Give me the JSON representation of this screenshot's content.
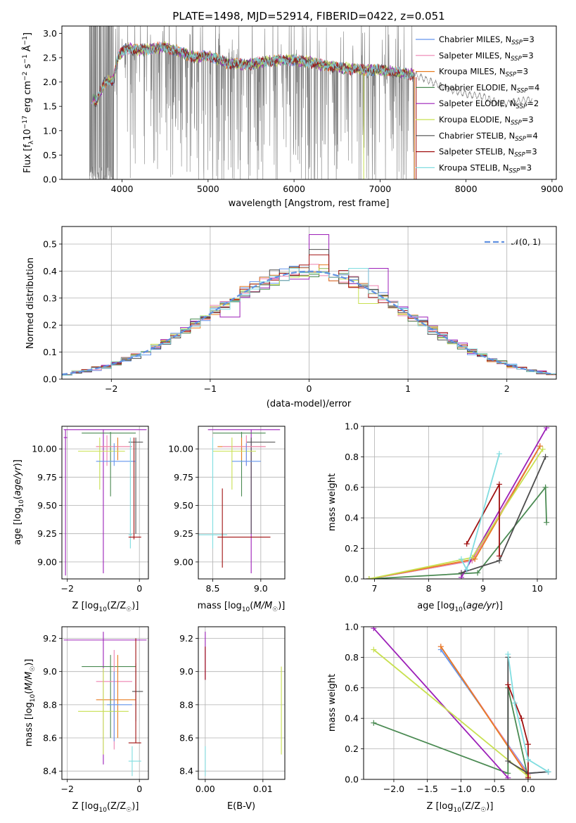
{
  "title": "PLATE=1498, MJD=52914, FIBERID=0422, z=0.051",
  "colors": {
    "data": "#808080",
    "Chabrier MILES": "#6495ed",
    "Salpeter MILES": "#ee82b0",
    "Kroupa MILES": "#e87d22",
    "Chabrier ELODIE": "#4a8a52",
    "Salpeter ELODIE": "#9c1fb8",
    "Kroupa ELODIE": "#c8e050",
    "Chabrier STELIB": "#4d4d4d",
    "Salpeter STELIB": "#a01010",
    "Kroupa STELIB": "#80dde0",
    "normal": "#6090e0"
  },
  "labels": {
    "spec_x": "wavelength [Angstrom, rest frame]",
    "spec_y": "Flux [f_λ 10^-17 erg cm^-2 s^-1 Å^-1]",
    "hist_x": "(data-model)/error",
    "hist_y": "Normed distribution",
    "normal": "𝒩(0, 1)",
    "age": "age  [log10(age/yr)]",
    "Z": "Z [log10(Z/Z☉)]",
    "mass": "mass [log10(M/M☉)]",
    "mw": "mass weight",
    "ebv": "E(B-V)"
  },
  "legend": [
    {
      "imf": "Chabrier",
      "lib": "MILES",
      "n": "3"
    },
    {
      "imf": "Salpeter",
      "lib": "MILES",
      "n": "3"
    },
    {
      "imf": "Kroupa",
      "lib": "MILES",
      "n": "3"
    },
    {
      "imf": "Chabrier",
      "lib": "ELODIE",
      "n": "4"
    },
    {
      "imf": "Salpeter",
      "lib": "ELODIE",
      "n": "2"
    },
    {
      "imf": "Kroupa",
      "lib": "ELODIE",
      "n": "3"
    },
    {
      "imf": "Chabrier",
      "lib": "STELIB",
      "n": "4"
    },
    {
      "imf": "Salpeter",
      "lib": "STELIB",
      "n": "3"
    },
    {
      "imf": "Kroupa",
      "lib": "STELIB",
      "n": "3"
    }
  ],
  "chart_data": [
    {
      "type": "line",
      "name": "spectrum",
      "xlim": [
        3300,
        9050
      ],
      "ylim": [
        0,
        3.15
      ],
      "xticks": [
        4000,
        5000,
        6000,
        7000,
        8000,
        9000
      ],
      "yticks": [
        0.0,
        0.5,
        1.0,
        1.5,
        2.0,
        2.5,
        3.0
      ],
      "grid": false,
      "legend_position": "right",
      "continuum_knots": [
        [
          3620,
          1.7
        ],
        [
          3700,
          1.6
        ],
        [
          3800,
          2.0
        ],
        [
          3900,
          2.05
        ],
        [
          3950,
          2.5
        ],
        [
          4050,
          2.7
        ],
        [
          4200,
          2.65
        ],
        [
          4400,
          2.7
        ],
        [
          4500,
          2.72
        ],
        [
          4700,
          2.6
        ],
        [
          4850,
          2.5
        ],
        [
          5000,
          2.55
        ],
        [
          5200,
          2.4
        ],
        [
          5400,
          2.35
        ],
        [
          5600,
          2.4
        ],
        [
          5800,
          2.45
        ],
        [
          6000,
          2.45
        ],
        [
          6200,
          2.4
        ],
        [
          6500,
          2.3
        ],
        [
          6800,
          2.25
        ],
        [
          7000,
          2.25
        ],
        [
          7200,
          2.2
        ],
        [
          7400,
          2.15
        ],
        [
          7600,
          2.0
        ],
        [
          7800,
          1.85
        ],
        [
          8000,
          1.75
        ],
        [
          8200,
          1.7
        ],
        [
          8400,
          1.55
        ],
        [
          8600,
          1.6
        ],
        [
          8770,
          1.65
        ]
      ],
      "noise_regions": [
        [
          3620,
          3900,
          "full"
        ],
        [
          3900,
          7400,
          "spiky"
        ],
        [
          7400,
          8770,
          "smooth"
        ]
      ]
    },
    {
      "type": "bar",
      "name": "residual histograms",
      "xlim": [
        -2.5,
        2.5
      ],
      "ylim": [
        0,
        0.565
      ],
      "xticks": [
        -2,
        -1,
        0,
        1,
        2
      ],
      "yticks": [
        0.0,
        0.1,
        0.2,
        0.3,
        0.4,
        0.5
      ],
      "grid": true,
      "bin_width": 0.1,
      "legend_position": "top-right",
      "spiky_bins": {
        "Salpeter ELODIE": [
          [
            0.1,
            0.535
          ],
          [
            1.1,
            0.23
          ],
          [
            -0.1,
            0.37
          ],
          [
            0.7,
            0.41
          ],
          [
            -0.8,
            0.23
          ]
        ],
        "Chabrier STELIB": [
          [
            0.1,
            0.48
          ]
        ],
        "Salpeter STELIB": [
          [
            0.1,
            0.46
          ]
        ],
        "Kroupa STELIB": [
          [
            0.5,
            0.41
          ]
        ],
        "Kroupa ELODIE": [
          [
            0.6,
            0.28
          ],
          [
            -0.4,
            0.35
          ]
        ]
      }
    },
    {
      "type": "scatter",
      "name": "age vs Z",
      "xlim": [
        -2.15,
        0.25
      ],
      "ylim": [
        8.85,
        10.2
      ],
      "xticks": [
        -2,
        0
      ],
      "yticks": [
        9.0,
        9.25,
        9.5,
        9.75,
        10.0
      ],
      "grid": true,
      "points": [
        {
          "s": "Salpeter ELODIE",
          "x": -1.0,
          "xlo": -2.1,
          "xhi": 0.2,
          "y": 10.17,
          "ylo": 8.9,
          "yhi": 10.17
        },
        {
          "s": "Salpeter ELODIE",
          "x": -2.05,
          "xlo": -2.1,
          "xhi": -2.0,
          "y": 10.1,
          "ylo": 8.88,
          "yhi": 10.17
        },
        {
          "s": "Chabrier ELODIE",
          "x": -0.8,
          "xlo": -1.6,
          "xhi": -0.1,
          "y": 10.14,
          "ylo": 9.58,
          "yhi": 10.15
        },
        {
          "s": "Chabrier STELIB",
          "x": -0.1,
          "xlo": -0.3,
          "xhi": 0.1,
          "y": 10.06,
          "ylo": 9.25,
          "yhi": 10.1
        },
        {
          "s": "Kroupa MILES",
          "x": -0.6,
          "xlo": -1.2,
          "xhi": -0.2,
          "y": 10.02,
          "ylo": 9.9,
          "yhi": 10.1
        },
        {
          "s": "Salpeter MILES",
          "x": -0.9,
          "xlo": -1.2,
          "xhi": -0.2,
          "y": 10.02,
          "ylo": 9.85,
          "yhi": 10.12
        },
        {
          "s": "Kroupa ELODIE",
          "x": -1.1,
          "xlo": -1.7,
          "xhi": -0.4,
          "y": 9.98,
          "ylo": 9.64,
          "yhi": 10.1
        },
        {
          "s": "Chabrier MILES",
          "x": -0.7,
          "xlo": -1.2,
          "xhi": -0.1,
          "y": 9.89,
          "ylo": 9.85,
          "yhi": 10.05
        },
        {
          "s": "Kroupa STELIB",
          "x": -0.25,
          "xlo": -0.3,
          "xhi": -0.2,
          "y": 9.24,
          "ylo": 9.12,
          "yhi": 10.1
        },
        {
          "s": "Salpeter STELIB",
          "x": -0.15,
          "xlo": -0.3,
          "xhi": 0.05,
          "y": 9.22,
          "ylo": 9.2,
          "yhi": 10.1
        }
      ]
    },
    {
      "type": "scatter",
      "name": "age vs mass",
      "xlim": [
        8.35,
        9.25
      ],
      "ylim": [
        8.85,
        10.2
      ],
      "xticks": [
        8.5,
        9.0
      ],
      "yticks": [
        9.0,
        9.25,
        9.5,
        9.75,
        10.0
      ],
      "grid": true,
      "points": [
        {
          "s": "Salpeter ELODIE",
          "x": 8.9,
          "xlo": 8.45,
          "xhi": 9.2,
          "y": 10.17,
          "ylo": 8.9,
          "yhi": 10.17
        },
        {
          "s": "Chabrier ELODIE",
          "x": 8.8,
          "xlo": 8.5,
          "xhi": 9.05,
          "y": 10.14,
          "ylo": 9.58,
          "yhi": 10.15
        },
        {
          "s": "Chabrier STELIB",
          "x": 8.9,
          "xlo": 8.85,
          "xhi": 9.15,
          "y": 10.06,
          "ylo": 9.25,
          "yhi": 10.1
        },
        {
          "s": "Kroupa MILES",
          "x": 8.8,
          "xlo": 8.55,
          "xhi": 9.05,
          "y": 10.02,
          "ylo": 9.9,
          "yhi": 10.1
        },
        {
          "s": "Salpeter MILES",
          "x": 8.85,
          "xlo": 8.6,
          "xhi": 9.05,
          "y": 10.02,
          "ylo": 9.85,
          "yhi": 10.12
        },
        {
          "s": "Kroupa ELODIE",
          "x": 8.7,
          "xlo": 8.5,
          "xhi": 8.95,
          "y": 9.98,
          "ylo": 9.64,
          "yhi": 10.1
        },
        {
          "s": "Chabrier MILES",
          "x": 8.85,
          "xlo": 8.7,
          "xhi": 9.0,
          "y": 9.89,
          "ylo": 9.85,
          "yhi": 10.05
        },
        {
          "s": "Kroupa STELIB",
          "x": 8.5,
          "xlo": 8.35,
          "xhi": 8.65,
          "y": 9.24,
          "ylo": 9.12,
          "yhi": 10.1
        },
        {
          "s": "Salpeter STELIB",
          "x": 8.6,
          "xlo": 8.55,
          "xhi": 9.1,
          "y": 9.22,
          "ylo": 8.95,
          "yhi": 9.65
        }
      ]
    },
    {
      "type": "line",
      "name": "mass weight vs age",
      "xlim": [
        6.8,
        10.35
      ],
      "ylim": [
        0,
        1.0
      ],
      "xticks": [
        7,
        8,
        9,
        10
      ],
      "yticks": [
        0.0,
        0.2,
        0.4,
        0.6,
        0.8,
        1.0
      ],
      "grid": true,
      "series": [
        {
          "s": "Chabrier MILES",
          "points": [
            [
              6.9,
              0.0
            ],
            [
              8.8,
              0.12
            ],
            [
              10.05,
              0.87
            ]
          ]
        },
        {
          "s": "Salpeter MILES",
          "points": [
            [
              6.9,
              0.0
            ],
            [
              8.8,
              0.12
            ],
            [
              10.05,
              0.87
            ]
          ]
        },
        {
          "s": "Kroupa MILES",
          "points": [
            [
              6.9,
              0.0
            ],
            [
              8.85,
              0.13
            ],
            [
              10.05,
              0.87
            ]
          ]
        },
        {
          "s": "Chabrier ELODIE",
          "points": [
            [
              6.9,
              0.0
            ],
            [
              8.9,
              0.04
            ],
            [
              10.15,
              0.6
            ],
            [
              10.17,
              0.37
            ]
          ]
        },
        {
          "s": "Salpeter ELODIE",
          "points": [
            [
              8.6,
              0.01
            ],
            [
              10.17,
              0.99
            ]
          ]
        },
        {
          "s": "Kroupa ELODIE",
          "points": [
            [
              6.9,
              0.0
            ],
            [
              8.8,
              0.14
            ],
            [
              10.1,
              0.85
            ]
          ]
        },
        {
          "s": "Chabrier STELIB",
          "points": [
            [
              8.6,
              0.04
            ],
            [
              9.3,
              0.12
            ],
            [
              10.15,
              0.8
            ]
          ]
        },
        {
          "s": "Salpeter STELIB",
          "points": [
            [
              8.7,
              0.23
            ],
            [
              9.3,
              0.62
            ],
            [
              9.3,
              0.15
            ]
          ]
        },
        {
          "s": "Kroupa STELIB",
          "points": [
            [
              8.6,
              0.13
            ],
            [
              8.7,
              0.06
            ],
            [
              9.3,
              0.82
            ]
          ]
        }
      ]
    },
    {
      "type": "scatter",
      "name": "mass vs Z",
      "xlim": [
        -2.15,
        0.25
      ],
      "ylim": [
        8.35,
        9.27
      ],
      "xticks": [
        -2,
        0
      ],
      "yticks": [
        8.4,
        8.6,
        8.8,
        9.0,
        9.2
      ],
      "grid": true,
      "points": [
        {
          "s": "Salpeter ELODIE",
          "x": -1.0,
          "xlo": -2.1,
          "xhi": 0.2,
          "y": 9.19,
          "ylo": 8.44,
          "yhi": 9.24
        },
        {
          "s": "Chabrier ELODIE",
          "x": -0.8,
          "xlo": -1.6,
          "xhi": -0.1,
          "y": 9.03,
          "ylo": 8.6,
          "yhi": 9.1
        },
        {
          "s": "Salpeter MILES",
          "x": -0.7,
          "xlo": -1.2,
          "xhi": -0.2,
          "y": 8.94,
          "ylo": 8.53,
          "yhi": 9.13
        },
        {
          "s": "Chabrier STELIB",
          "x": -0.1,
          "xlo": -0.2,
          "xhi": 0.1,
          "y": 8.88,
          "ylo": 8.7,
          "yhi": 9.05
        },
        {
          "s": "Kroupa MILES",
          "x": -0.6,
          "xlo": -1.2,
          "xhi": -0.1,
          "y": 8.83,
          "ylo": 8.6,
          "yhi": 9.1
        },
        {
          "s": "Kroupa ELODIE",
          "x": -1.0,
          "xlo": -1.7,
          "xhi": -0.3,
          "y": 8.76,
          "ylo": 8.5,
          "yhi": 9.02
        },
        {
          "s": "Chabrier MILES",
          "x": -0.7,
          "xlo": -0.9,
          "xhi": -0.2,
          "y": 8.8,
          "ylo": 8.58,
          "yhi": 9.0
        },
        {
          "s": "Salpeter STELIB",
          "x": -0.1,
          "xlo": -0.3,
          "xhi": 0.05,
          "y": 8.57,
          "ylo": 8.57,
          "yhi": 9.2
        },
        {
          "s": "Kroupa STELIB",
          "x": -0.2,
          "xlo": -0.3,
          "xhi": 0.05,
          "y": 8.46,
          "ylo": 8.37,
          "yhi": 8.55
        }
      ]
    },
    {
      "type": "scatter",
      "name": "mass vs E(B-V)",
      "xlim": [
        -0.0012,
        0.0138
      ],
      "ylim": [
        8.35,
        9.27
      ],
      "xticks": [
        0.0,
        0.01
      ],
      "yticks": [
        8.4,
        8.6,
        8.8,
        9.0,
        9.2
      ],
      "grid": true,
      "points": [
        {
          "s": "Salpeter ELODIE",
          "x": 0.0,
          "y": 9.1,
          "ylo": 8.95,
          "yhi": 9.24
        },
        {
          "s": "Salpeter STELIB",
          "x": 0.0,
          "y": 9.05,
          "ylo": 8.95,
          "yhi": 9.15
        },
        {
          "s": "Kroupa ELODIE",
          "x": 0.0132,
          "y": 8.76,
          "ylo": 8.5,
          "yhi": 9.03
        },
        {
          "s": "Kroupa STELIB",
          "x": 0.0,
          "y": 8.46,
          "ylo": 8.37,
          "yhi": 8.55
        }
      ]
    },
    {
      "type": "line",
      "name": "mass weight vs Z",
      "xlim": [
        -2.45,
        0.42
      ],
      "ylim": [
        0,
        1.0
      ],
      "xticks": [
        -2.0,
        -1.5,
        -1.0,
        -0.5,
        0.0
      ],
      "yticks": [
        0.0,
        0.2,
        0.4,
        0.6,
        0.8,
        1.0
      ],
      "grid": true,
      "series": [
        {
          "s": "Chabrier MILES",
          "points": [
            [
              -1.3,
              0.85
            ],
            [
              0.0,
              0.04
            ],
            [
              0.3,
              0.05
            ]
          ]
        },
        {
          "s": "Salpeter MILES",
          "points": [
            [
              -1.3,
              0.87
            ],
            [
              0.0,
              0.03
            ]
          ]
        },
        {
          "s": "Kroupa MILES",
          "points": [
            [
              -1.3,
              0.87
            ],
            [
              0.0,
              0.02
            ]
          ]
        },
        {
          "s": "Chabrier ELODIE",
          "points": [
            [
              -2.3,
              0.37
            ],
            [
              -0.3,
              0.04
            ],
            [
              -0.3,
              0.6
            ],
            [
              0.0,
              0.01
            ]
          ]
        },
        {
          "s": "Salpeter ELODIE",
          "points": [
            [
              -2.3,
              0.99
            ],
            [
              -0.3,
              0.01
            ]
          ]
        },
        {
          "s": "Kroupa ELODIE",
          "points": [
            [
              -2.3,
              0.85
            ],
            [
              0.0,
              0.02
            ]
          ]
        },
        {
          "s": "Chabrier STELIB",
          "points": [
            [
              -0.3,
              0.8
            ],
            [
              -0.3,
              0.12
            ],
            [
              0.0,
              0.04
            ],
            [
              0.3,
              0.05
            ]
          ]
        },
        {
          "s": "Salpeter STELIB",
          "points": [
            [
              -0.3,
              0.62
            ],
            [
              -0.1,
              0.4
            ],
            [
              0.0,
              0.23
            ],
            [
              0.0,
              0.01
            ]
          ]
        },
        {
          "s": "Kroupa STELIB",
          "points": [
            [
              -0.3,
              0.82
            ],
            [
              -0.2,
              0.5
            ],
            [
              0.0,
              0.13
            ],
            [
              0.3,
              0.05
            ]
          ]
        }
      ]
    }
  ]
}
